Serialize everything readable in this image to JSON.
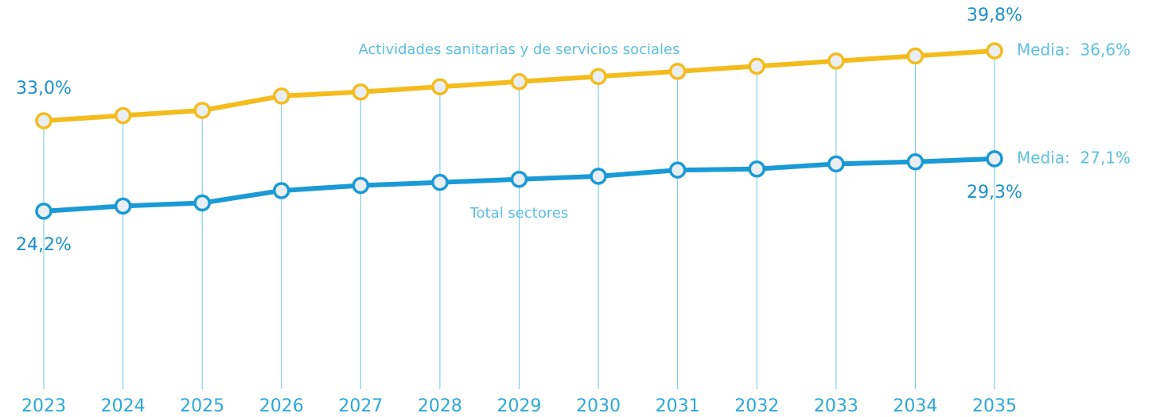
{
  "chart_data": {
    "type": "line",
    "categories": [
      "2023",
      "2024",
      "2025",
      "2026",
      "2027",
      "2028",
      "2029",
      "2030",
      "2031",
      "2032",
      "2033",
      "2034",
      "2035"
    ],
    "series": [
      {
        "name": "Actividades sanitarias y de servicios sociales",
        "color": "#f4bb1c",
        "values": [
          33.0,
          33.5,
          34.0,
          35.4,
          35.8,
          36.3,
          36.8,
          37.3,
          37.8,
          38.3,
          38.8,
          39.3,
          39.8
        ],
        "value_labels": [
          "33,0%",
          null,
          null,
          null,
          null,
          null,
          null,
          null,
          null,
          null,
          null,
          null,
          "39,8%"
        ],
        "annotation": "Media:  36,6%"
      },
      {
        "name": "Total sectores",
        "color": "#1a9ad6",
        "values": [
          24.2,
          24.7,
          25.0,
          26.2,
          26.7,
          27.0,
          27.3,
          27.6,
          28.2,
          28.3,
          28.8,
          29.0,
          29.3
        ],
        "value_labels": [
          "24,2%",
          null,
          null,
          null,
          null,
          null,
          null,
          null,
          null,
          null,
          null,
          null,
          "29,3%"
        ],
        "annotation": "Media:  27,1%"
      }
    ],
    "ylim": [
      10,
      42
    ]
  }
}
